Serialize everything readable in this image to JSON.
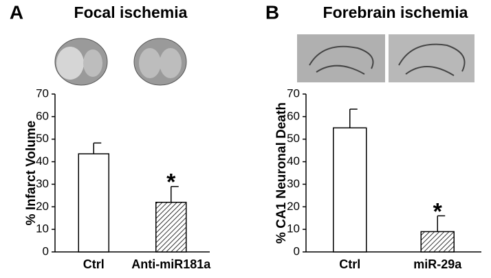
{
  "chart_data": [
    {
      "type": "bar",
      "panel_label": "A",
      "title": "Focal ischemia",
      "ylabel": "% Infarct Volume",
      "categories": [
        "Ctrl",
        "Anti-miR181a"
      ],
      "values": [
        43.5,
        22
      ],
      "errors": [
        4.8,
        7
      ],
      "hatched": [
        false,
        true
      ],
      "color": "#ffffff",
      "significant": [
        false,
        true
      ],
      "annotation": "*",
      "ylim": [
        0,
        70
      ],
      "yticks": [
        0,
        10,
        20,
        30,
        40,
        50,
        60,
        70
      ]
    },
    {
      "type": "bar",
      "panel_label": "B",
      "title": "Forebrain ischemia",
      "ylabel": "% CA1 Neuronal Death",
      "categories": [
        "Ctrl",
        "miR-29a"
      ],
      "values": [
        55,
        9
      ],
      "errors": [
        8.3,
        7
      ],
      "hatched": [
        false,
        true
      ],
      "color": "#ffffff",
      "significant": [
        false,
        true
      ],
      "annotation": "*",
      "ylim": [
        0,
        70
      ],
      "yticks": [
        0,
        10,
        20,
        30,
        40,
        50,
        60,
        70
      ]
    }
  ]
}
